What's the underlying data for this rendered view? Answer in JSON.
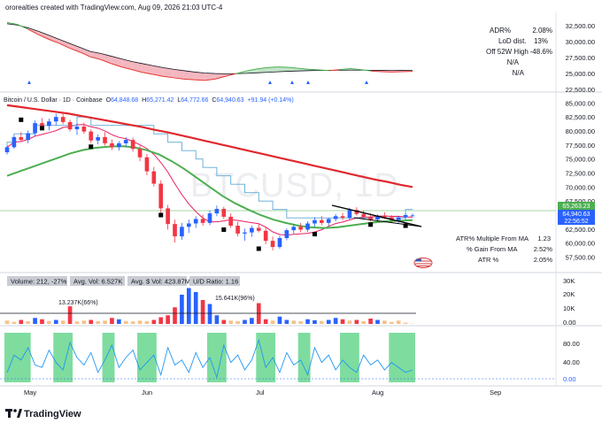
{
  "header": {
    "credit": "ororealties created with TradingView.com, Aug 09, 2026 21:03 UTC-4"
  },
  "top_panel": {
    "axis_ticks": [
      "32,500.00",
      "30,000.00",
      "27,500.00",
      "25,000.00",
      "22,500.00"
    ],
    "stats": [
      {
        "label": "ADR%",
        "value": "2.08%"
      },
      {
        "label": "LoD dist.",
        "value": "13%"
      },
      {
        "label": "Off 52W High",
        "value": "-48.6%"
      },
      {
        "label": "",
        "value": "N/A"
      },
      {
        "label": "",
        "value": "N/A"
      }
    ]
  },
  "price_panel": {
    "symbol": "Bitcoin / U.S. Dollar · 1D · Coinbase",
    "o_label": "O",
    "o_value": "64,848.68",
    "h_label": "H",
    "h_value": "65,271.42",
    "l_label": "L",
    "l_value": "64,772.66",
    "c_label": "C",
    "c_value": "64,940.63",
    "change": "+91.94 (+0.14%)",
    "watermark": "BTCUSD, 1D",
    "axis_ticks": [
      "85,000.00",
      "82,500.00",
      "80,000.00",
      "77,500.00",
      "75,000.00",
      "72,500.00",
      "70,000.00",
      "67,500.00",
      "62,500.00",
      "60,000.00",
      "57,500.00"
    ],
    "price_labels": {
      "ma": "65,263.23",
      "last": "64,940.63",
      "countdown": "22:56:52"
    },
    "stats": [
      {
        "label": "ATR% Multiple From MA",
        "value": "1.23"
      },
      {
        "label": "% Gain From MA",
        "value": "2.52%"
      },
      {
        "label": "ATR %",
        "value": "2.05%"
      }
    ]
  },
  "volume_panel": {
    "stat_boxes": [
      "Volume: 212, -27%",
      "Avg. Vol: 6.527K",
      "Avg. $ Vol: 423.87M",
      "U/D Ratio: 1.16"
    ],
    "labels": [
      "13.237K(66%)",
      "15.641K(96%)"
    ],
    "axis_ticks": [
      "30K",
      "20K",
      "10K",
      "0.00"
    ]
  },
  "osc_panel": {
    "axis_ticks": [
      "80.00",
      "40.00",
      "0.00"
    ]
  },
  "x_axis": {
    "ticks": [
      "May",
      "Jun",
      "Jul",
      "Aug",
      "Sep"
    ]
  },
  "footer": {
    "brand": "TradingView"
  },
  "colors": {
    "up": "#2962ff",
    "down": "#f23645",
    "ema_red": "#e0282e",
    "sma_green": "#4caf50",
    "sma_pink": "#e91e63",
    "teal": "#5fa8d3",
    "trend": "#000000",
    "osc_fill": "#7edc9f",
    "osc_line": "#2196f3",
    "dark_fill": "#c1e2c8",
    "dark_fill_neg": "#f4b6bf"
  },
  "chart_data": [
    {
      "type": "line",
      "title": "",
      "ylim": [
        22500,
        33000
      ],
      "series": [
        {
          "values": [
            32100,
            31900,
            31500,
            31000,
            30400,
            29800,
            29200,
            28600,
            28000,
            27700,
            27300,
            26900,
            26500,
            26200,
            25900,
            25600,
            25350,
            25150,
            24950,
            24800,
            24720,
            24680,
            24700,
            24750,
            24820,
            24900,
            24980,
            25050,
            25100,
            25150,
            25180,
            25200,
            25210,
            25220,
            25220,
            25210,
            25200,
            25190,
            25180,
            25170
          ]
        },
        {
          "values": [
            32300,
            32000,
            31300,
            30500,
            29800,
            29200,
            28500,
            27900,
            27200,
            26800,
            26200,
            25700,
            25300,
            24900,
            24600,
            24300,
            24100,
            23900,
            23800,
            23700,
            23900,
            24300,
            24700,
            25100,
            25400,
            25600,
            25700,
            25650,
            25500,
            25350,
            25250,
            25150,
            25300,
            25450,
            25300,
            25100,
            25000,
            24950,
            25000,
            25050
          ]
        }
      ]
    },
    {
      "type": "candlestick",
      "title": "",
      "ylim": [
        56000,
        86000
      ],
      "candles": [
        [
          76200,
          77400,
          75800,
          77100
        ],
        [
          77100,
          79200,
          76800,
          78900
        ],
        [
          78900,
          79800,
          78200,
          78400
        ],
        [
          78400,
          80100,
          77800,
          79600
        ],
        [
          79600,
          81900,
          79100,
          81400
        ],
        [
          81400,
          82300,
          80300,
          80900
        ],
        [
          80900,
          82200,
          80100,
          81700
        ],
        [
          81700,
          83100,
          81000,
          82500
        ],
        [
          82500,
          83300,
          81200,
          81600
        ],
        [
          81600,
          82000,
          79900,
          80300
        ],
        [
          80300,
          81400,
          79300,
          80800
        ],
        [
          80800,
          81500,
          79500,
          79900
        ],
        [
          79900,
          80300,
          77800,
          78300
        ],
        [
          78300,
          79400,
          77600,
          78900
        ],
        [
          78900,
          79800,
          77400,
          77800
        ],
        [
          77800,
          78500,
          76600,
          77100
        ],
        [
          77100,
          78200,
          76500,
          77800
        ],
        [
          77800,
          78900,
          77200,
          78400
        ],
        [
          78400,
          78800,
          76300,
          76800
        ],
        [
          76800,
          77400,
          74600,
          75300
        ],
        [
          75300,
          75900,
          72100,
          72800
        ],
        [
          72800,
          73600,
          70100,
          70600
        ],
        [
          70600,
          71200,
          65300,
          66200
        ],
        [
          66200,
          66800,
          62400,
          63400
        ],
        [
          63400,
          64200,
          60100,
          61200
        ],
        [
          61200,
          63600,
          60600,
          62900
        ],
        [
          62900,
          64200,
          61800,
          63500
        ],
        [
          63500,
          64800,
          62700,
          64300
        ],
        [
          64300,
          65100,
          63100,
          63600
        ],
        [
          63600,
          65800,
          63200,
          65300
        ],
        [
          65300,
          66700,
          64800,
          66100
        ],
        [
          66100,
          66500,
          64300,
          64700
        ],
        [
          64700,
          65300,
          62700,
          63100
        ],
        [
          63100,
          63800,
          61200,
          61700
        ],
        [
          61700,
          62600,
          60400,
          61900
        ],
        [
          61900,
          63100,
          61100,
          62700
        ],
        [
          62700,
          63400,
          61900,
          62200
        ],
        [
          62200,
          62800,
          59800,
          60400
        ],
        [
          60400,
          61200,
          58700,
          59300
        ],
        [
          59300,
          61300,
          59000,
          60900
        ],
        [
          60900,
          62600,
          60500,
          62300
        ],
        [
          62300,
          63300,
          61700,
          62900
        ],
        [
          62900,
          63600,
          61900,
          62400
        ],
        [
          62400,
          63900,
          62000,
          63500
        ],
        [
          63500,
          64600,
          62900,
          64100
        ],
        [
          64100,
          64800,
          63200,
          63600
        ],
        [
          63600,
          64500,
          63100,
          64300
        ],
        [
          64300,
          65200,
          63900,
          64800
        ],
        [
          64800,
          65400,
          64100,
          64500
        ],
        [
          64500,
          66300,
          64200,
          65900
        ],
        [
          65900,
          66400,
          64900,
          65200
        ],
        [
          65200,
          65800,
          64300,
          64700
        ],
        [
          64700,
          65300,
          63900,
          64200
        ],
        [
          64200,
          65100,
          63800,
          64900
        ],
        [
          64900,
          65500,
          64300,
          64600
        ],
        [
          64600,
          65000,
          63700,
          64100
        ],
        [
          64100,
          64800,
          63600,
          64600
        ],
        [
          64600,
          65300,
          64200,
          65000
        ],
        [
          64848.68,
          65271.42,
          64772.66,
          64940.63
        ]
      ],
      "series": [
        {
          "values": [
            84600,
            84300,
            84000,
            83700,
            83400,
            83100,
            82700,
            82300,
            81900,
            81500,
            81100,
            80700,
            80200,
            79800,
            79300,
            78800,
            78300,
            77800,
            77300,
            76800,
            76300,
            75800,
            75300,
            74800,
            74300,
            73800,
            73300,
            72800,
            72300,
            71800,
            71300,
            70900,
            70400,
            70000
          ]
        },
        {
          "values": [
            72000,
            72800,
            73600,
            74400,
            75200,
            76000,
            76600,
            77000,
            77200,
            77300,
            77100,
            76600,
            75800,
            74600,
            73200,
            71600,
            70000,
            68400,
            67100,
            66000,
            65000,
            64200,
            63600,
            63100,
            62800,
            62700,
            62800,
            63100,
            63400,
            63700,
            63900,
            64000,
            64100
          ]
        }
      ]
    },
    {
      "type": "bar",
      "title": "",
      "ylim": [
        0,
        32000
      ],
      "values": [
        2500,
        1500,
        3000,
        2000,
        4500,
        3500,
        2200,
        3000,
        2500,
        13237,
        1800,
        2500,
        3000,
        2000,
        2500,
        4500,
        3500,
        2200,
        1800,
        2500,
        2000,
        3000,
        5000,
        6500,
        12500,
        22000,
        27000,
        24000,
        18000,
        15000,
        6500,
        3000,
        2500,
        2000,
        3000,
        4500,
        15641,
        3500,
        2500,
        5500,
        3000,
        2500,
        2000,
        3500,
        2800,
        2200,
        3000,
        4500,
        3500,
        2500,
        3000,
        2000,
        4000,
        3000,
        2500,
        1500,
        2500,
        900,
        212
      ]
    },
    {
      "type": "area",
      "title": "",
      "ylim": [
        0,
        100
      ],
      "values": [
        20,
        55,
        45,
        70,
        35,
        30,
        65,
        40,
        25,
        80,
        50,
        35,
        60,
        20,
        45,
        75,
        30,
        50,
        65,
        25,
        40,
        55,
        15,
        70,
        35,
        45,
        20,
        60,
        30,
        50,
        10,
        75,
        40,
        55,
        25,
        45,
        85,
        30,
        50,
        20,
        60,
        35,
        45,
        15,
        70,
        40,
        55,
        25,
        45,
        30,
        20,
        55,
        35,
        45,
        25,
        40,
        30,
        20,
        25
      ]
    }
  ]
}
